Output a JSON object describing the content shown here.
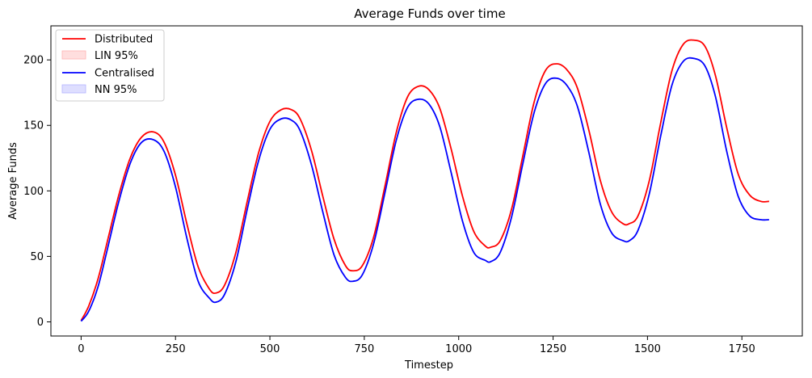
{
  "chart_data": {
    "type": "line",
    "title": "Average Funds over time",
    "xlabel": "Timestep",
    "ylabel": "Average Funds",
    "xlim": [
      -80,
      1910
    ],
    "ylim": [
      -10.8,
      226
    ],
    "x_ticks": [
      0,
      250,
      500,
      750,
      1000,
      1250,
      1500,
      1750
    ],
    "y_ticks": [
      0,
      50,
      100,
      150,
      200
    ],
    "grid": false,
    "legend_position": "top-left",
    "legend": [
      {
        "label": "Distributed",
        "kind": "line",
        "color": "#ff0000"
      },
      {
        "label": "LIN 95%",
        "kind": "band",
        "color": "#ffdede",
        "edge": "#ffb3b3"
      },
      {
        "label": "Centralised",
        "kind": "line",
        "color": "#0000ff"
      },
      {
        "label": "NN 95%",
        "kind": "band",
        "color": "#dedeff",
        "edge": "#b3b3ff"
      }
    ],
    "series": [
      {
        "name": "Distributed",
        "color": "#ff0000",
        "x": [
          0,
          20,
          45,
          70,
          100,
          130,
          160,
          192,
          220,
          250,
          280,
          310,
          340,
          357,
          380,
          410,
          440,
          470,
          500,
          530,
          557,
          580,
          610,
          640,
          670,
          700,
          720,
          745,
          775,
          805,
          835,
          865,
          895,
          922,
          950,
          980,
          1010,
          1040,
          1070,
          1085,
          1110,
          1140,
          1170,
          1200,
          1230,
          1260,
          1288,
          1315,
          1345,
          1375,
          1405,
          1435,
          1452,
          1475,
          1505,
          1535,
          1565,
          1595,
          1625,
          1653,
          1680,
          1710,
          1740,
          1770,
          1800,
          1822
        ],
        "y": [
          1,
          12,
          33,
          62,
          97,
          125,
          141,
          145,
          137,
          112,
          75,
          42,
          25,
          22,
          28,
          53,
          92,
          129,
          153,
          162,
          162,
          155,
          131,
          96,
          63,
          43,
          39,
          43,
          65,
          104,
          145,
          172,
          180,
          177,
          163,
          132,
          96,
          69,
          58,
          57,
          62,
          86,
          127,
          168,
          192,
          197,
          192,
          178,
          146,
          108,
          84,
          75,
          75,
          81,
          108,
          152,
          192,
          212,
          215,
          210,
          188,
          148,
          113,
          97,
          92,
          92
        ]
      },
      {
        "name": "Centralised",
        "color": "#0000ff",
        "x": [
          0,
          20,
          45,
          70,
          100,
          130,
          160,
          192,
          220,
          250,
          280,
          310,
          340,
          357,
          380,
          410,
          440,
          470,
          500,
          530,
          557,
          580,
          610,
          640,
          670,
          700,
          720,
          745,
          775,
          805,
          835,
          865,
          895,
          922,
          950,
          980,
          1010,
          1040,
          1070,
          1085,
          1110,
          1140,
          1170,
          1200,
          1230,
          1260,
          1288,
          1315,
          1345,
          1375,
          1405,
          1435,
          1452,
          1475,
          1505,
          1535,
          1565,
          1595,
          1625,
          1653,
          1680,
          1710,
          1740,
          1770,
          1800,
          1822
        ],
        "y": [
          0.5,
          8,
          27,
          56,
          92,
          121,
          137,
          139,
          130,
          103,
          64,
          31,
          18,
          15,
          21,
          46,
          86,
          123,
          147,
          155,
          154,
          146,
          120,
          84,
          51,
          34,
          31,
          36,
          60,
          99,
          139,
          164,
          170,
          166,
          149,
          114,
          77,
          53,
          47,
          46,
          53,
          80,
          121,
          160,
          182,
          186,
          180,
          164,
          129,
          90,
          68,
          62,
          62,
          70,
          98,
          142,
          181,
          199,
          201,
          195,
          172,
          130,
          96,
          81,
          78,
          78
        ]
      }
    ]
  }
}
